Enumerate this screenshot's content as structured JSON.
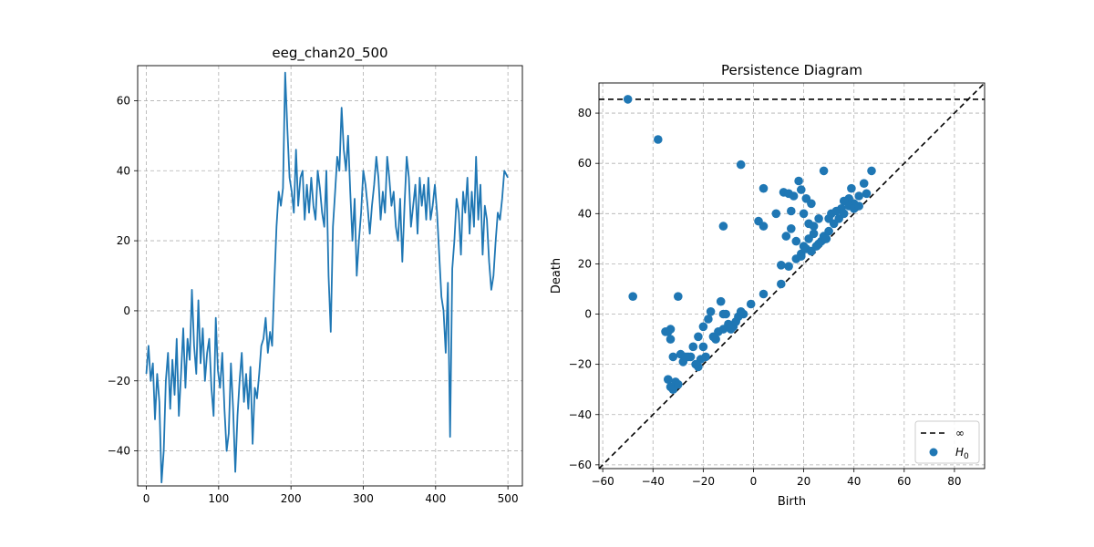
{
  "chart_data": [
    {
      "type": "line",
      "title": "eeg_chan20_500",
      "xlabel": "",
      "ylabel": "",
      "xlim": [
        -12,
        520
      ],
      "ylim": [
        -50,
        70
      ],
      "xticks": [
        0,
        100,
        200,
        300,
        400,
        500
      ],
      "yticks": [
        -40,
        -20,
        0,
        20,
        40,
        60
      ],
      "grid": true,
      "color": "#1f77b4",
      "anchors": [
        [
          0,
          -18
        ],
        [
          3,
          -10
        ],
        [
          6,
          -20
        ],
        [
          9,
          -15
        ],
        [
          12,
          -31
        ],
        [
          15,
          -18
        ],
        [
          18,
          -26
        ],
        [
          21,
          -49
        ],
        [
          24,
          -40
        ],
        [
          27,
          -20
        ],
        [
          30,
          -12
        ],
        [
          33,
          -28
        ],
        [
          36,
          -14
        ],
        [
          39,
          -24
        ],
        [
          42,
          -8
        ],
        [
          45,
          -30
        ],
        [
          48,
          -18
        ],
        [
          51,
          -5
        ],
        [
          54,
          -22
        ],
        [
          57,
          -8
        ],
        [
          60,
          -14
        ],
        [
          63,
          6
        ],
        [
          66,
          -10
        ],
        [
          69,
          -18
        ],
        [
          72,
          3
        ],
        [
          75,
          -15
        ],
        [
          78,
          -5
        ],
        [
          81,
          -20
        ],
        [
          84,
          -12
        ],
        [
          87,
          -8
        ],
        [
          90,
          -22
        ],
        [
          93,
          -30
        ],
        [
          96,
          -2
        ],
        [
          99,
          -17
        ],
        [
          102,
          -22
        ],
        [
          105,
          -12
        ],
        [
          108,
          -28
        ],
        [
          111,
          -40
        ],
        [
          114,
          -35
        ],
        [
          117,
          -15
        ],
        [
          120,
          -28
        ],
        [
          123,
          -46
        ],
        [
          126,
          -30
        ],
        [
          129,
          -20
        ],
        [
          132,
          -12
        ],
        [
          135,
          -26
        ],
        [
          138,
          -18
        ],
        [
          141,
          -28
        ],
        [
          144,
          -16
        ],
        [
          147,
          -38
        ],
        [
          150,
          -22
        ],
        [
          153,
          -25
        ],
        [
          156,
          -18
        ],
        [
          159,
          -10
        ],
        [
          162,
          -8
        ],
        [
          165,
          -2
        ],
        [
          168,
          -12
        ],
        [
          171,
          -6
        ],
        [
          174,
          -10
        ],
        [
          177,
          8
        ],
        [
          180,
          24
        ],
        [
          183,
          34
        ],
        [
          186,
          30
        ],
        [
          189,
          35
        ],
        [
          192,
          68
        ],
        [
          195,
          52
        ],
        [
          198,
          38
        ],
        [
          201,
          34
        ],
        [
          204,
          28
        ],
        [
          207,
          46
        ],
        [
          210,
          30
        ],
        [
          213,
          38
        ],
        [
          216,
          40
        ],
        [
          219,
          26
        ],
        [
          222,
          36
        ],
        [
          225,
          28
        ],
        [
          228,
          38
        ],
        [
          231,
          30
        ],
        [
          234,
          26
        ],
        [
          237,
          40
        ],
        [
          240,
          35
        ],
        [
          243,
          28
        ],
        [
          246,
          24
        ],
        [
          249,
          40
        ],
        [
          252,
          10
        ],
        [
          255,
          -6
        ],
        [
          258,
          24
        ],
        [
          261,
          34
        ],
        [
          264,
          44
        ],
        [
          267,
          40
        ],
        [
          270,
          58
        ],
        [
          273,
          46
        ],
        [
          276,
          40
        ],
        [
          279,
          50
        ],
        [
          282,
          34
        ],
        [
          285,
          20
        ],
        [
          288,
          32
        ],
        [
          291,
          10
        ],
        [
          294,
          20
        ],
        [
          297,
          28
        ],
        [
          300,
          40
        ],
        [
          303,
          36
        ],
        [
          306,
          30
        ],
        [
          309,
          22
        ],
        [
          312,
          30
        ],
        [
          315,
          36
        ],
        [
          318,
          44
        ],
        [
          321,
          38
        ],
        [
          324,
          26
        ],
        [
          327,
          34
        ],
        [
          330,
          28
        ],
        [
          333,
          44
        ],
        [
          336,
          38
        ],
        [
          339,
          30
        ],
        [
          342,
          34
        ],
        [
          345,
          24
        ],
        [
          348,
          20
        ],
        [
          351,
          32
        ],
        [
          354,
          14
        ],
        [
          357,
          30
        ],
        [
          360,
          44
        ],
        [
          363,
          38
        ],
        [
          366,
          24
        ],
        [
          369,
          30
        ],
        [
          372,
          36
        ],
        [
          375,
          22
        ],
        [
          378,
          38
        ],
        [
          381,
          30
        ],
        [
          384,
          36
        ],
        [
          387,
          26
        ],
        [
          390,
          38
        ],
        [
          393,
          26
        ],
        [
          396,
          30
        ],
        [
          399,
          36
        ],
        [
          402,
          28
        ],
        [
          405,
          16
        ],
        [
          408,
          4
        ],
        [
          411,
          0
        ],
        [
          414,
          -12
        ],
        [
          417,
          8
        ],
        [
          420,
          -36
        ],
        [
          423,
          12
        ],
        [
          426,
          20
        ],
        [
          429,
          32
        ],
        [
          432,
          28
        ],
        [
          435,
          16
        ],
        [
          438,
          34
        ],
        [
          441,
          28
        ],
        [
          444,
          38
        ],
        [
          447,
          22
        ],
        [
          450,
          34
        ],
        [
          453,
          24
        ],
        [
          456,
          44
        ],
        [
          459,
          26
        ],
        [
          462,
          36
        ],
        [
          465,
          16
        ],
        [
          468,
          30
        ],
        [
          471,
          26
        ],
        [
          474,
          14
        ],
        [
          477,
          6
        ],
        [
          480,
          10
        ],
        [
          483,
          20
        ],
        [
          486,
          28
        ],
        [
          489,
          26
        ],
        [
          492,
          32
        ],
        [
          495,
          40
        ],
        [
          500,
          38
        ]
      ]
    },
    {
      "type": "scatter",
      "title": "Persistence Diagram",
      "xlabel": "Birth",
      "ylabel": "Death",
      "xlim": [
        -61.5,
        92
      ],
      "ylim": [
        -61.5,
        92
      ],
      "xticks": [
        -60,
        -40,
        -20,
        0,
        20,
        40,
        60,
        80
      ],
      "yticks": [
        -60,
        -40,
        -20,
        0,
        20,
        40,
        60,
        80
      ],
      "grid": true,
      "infinity_level": 85.5,
      "diagonal": true,
      "point_color": "#1f77b4",
      "line_color": "#000000",
      "legend": {
        "position": "bottom-right",
        "entries": [
          {
            "label": "∞",
            "style": "dashed-line"
          },
          {
            "label_main": "H",
            "label_sub": "0",
            "style": "dot"
          }
        ]
      },
      "points": [
        [
          -50,
          85.5
        ],
        [
          -38,
          69.5
        ],
        [
          -5,
          59.5
        ],
        [
          -48,
          7
        ],
        [
          -30,
          7
        ],
        [
          -12,
          35
        ],
        [
          4,
          50
        ],
        [
          2,
          37
        ],
        [
          4,
          35
        ],
        [
          9,
          40
        ],
        [
          12,
          48.5
        ],
        [
          14,
          48
        ],
        [
          16,
          47
        ],
        [
          18,
          53
        ],
        [
          19,
          49.5
        ],
        [
          21,
          46
        ],
        [
          23,
          44
        ],
        [
          28,
          57
        ],
        [
          31,
          40
        ],
        [
          35,
          42
        ],
        [
          39,
          50
        ],
        [
          40,
          44
        ],
        [
          42,
          47
        ],
        [
          44,
          52
        ],
        [
          45,
          48
        ],
        [
          47,
          57
        ],
        [
          38,
          46
        ],
        [
          36,
          45
        ],
        [
          33,
          41
        ],
        [
          30,
          38
        ],
        [
          26,
          38
        ],
        [
          24,
          35
        ],
        [
          22,
          36
        ],
        [
          20,
          40
        ],
        [
          15,
          41
        ],
        [
          13,
          31
        ],
        [
          15,
          34
        ],
        [
          17,
          29
        ],
        [
          19,
          24
        ],
        [
          20,
          27
        ],
        [
          22,
          30
        ],
        [
          24,
          32
        ],
        [
          26,
          28
        ],
        [
          28,
          31
        ],
        [
          30,
          33
        ],
        [
          32,
          36
        ],
        [
          34,
          38
        ],
        [
          36,
          40
        ],
        [
          38,
          43
        ],
        [
          40,
          42
        ],
        [
          42,
          43
        ],
        [
          17,
          22
        ],
        [
          19,
          23
        ],
        [
          21,
          26
        ],
        [
          23,
          25
        ],
        [
          25,
          27
        ],
        [
          27,
          29
        ],
        [
          29,
          30
        ],
        [
          11,
          19.5
        ],
        [
          14,
          19
        ],
        [
          11,
          12
        ],
        [
          4,
          8
        ],
        [
          -1,
          4
        ],
        [
          -4,
          0
        ],
        [
          -6,
          -1
        ],
        [
          -8,
          -5
        ],
        [
          -10,
          -4
        ],
        [
          -12,
          -6
        ],
        [
          -14,
          -7
        ],
        [
          -15,
          -10
        ],
        [
          -13,
          5
        ],
        [
          -12,
          0
        ],
        [
          -11,
          0
        ],
        [
          -16,
          -9
        ],
        [
          -17,
          1
        ],
        [
          -18,
          -2
        ],
        [
          -20,
          -5
        ],
        [
          -22,
          -9
        ],
        [
          -24,
          -13
        ],
        [
          -26,
          -17
        ],
        [
          -28,
          -19
        ],
        [
          -20,
          -13
        ],
        [
          -19,
          -17
        ],
        [
          -21,
          -18
        ],
        [
          -22,
          -21
        ],
        [
          -23,
          -20
        ],
        [
          -25,
          -17
        ],
        [
          -29,
          -16
        ],
        [
          -27,
          -17
        ],
        [
          -31,
          -27
        ],
        [
          -34,
          -26
        ],
        [
          -33,
          -29
        ],
        [
          -32,
          -30
        ],
        [
          -30,
          -28
        ],
        [
          -34,
          -7
        ],
        [
          -33,
          -10
        ],
        [
          -35,
          -7
        ],
        [
          -33,
          -6
        ],
        [
          -32,
          -17
        ],
        [
          -5,
          1
        ],
        [
          -7,
          -3
        ],
        [
          -9,
          -6
        ]
      ]
    }
  ]
}
